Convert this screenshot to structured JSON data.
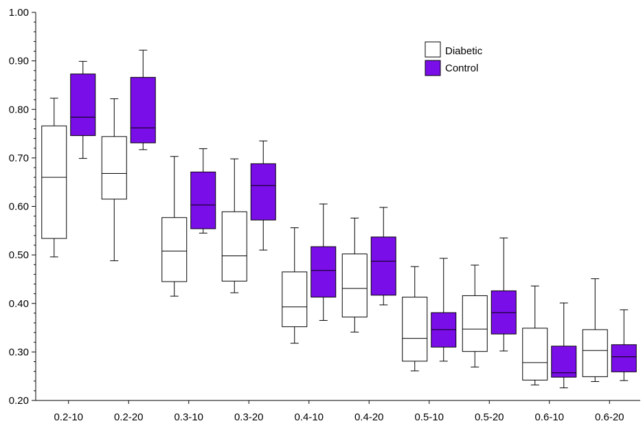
{
  "chart_data": {
    "type": "boxplot",
    "title": "",
    "xlabel": "",
    "ylabel": "",
    "ylim": [
      0.2,
      1.0
    ],
    "y_ticks": [
      "0.20",
      "0.30",
      "0.40",
      "0.50",
      "0.60",
      "0.70",
      "0.80",
      "0.90",
      "1.00"
    ],
    "grid": false,
    "legend_position": "top-right",
    "categories": [
      "0.2-10",
      "0.2-20",
      "0.3-10",
      "0.3-20",
      "0.4-10",
      "0.4-20",
      "0.5-10",
      "0.5-20",
      "0.6-10",
      "0.6-20"
    ],
    "series": [
      {
        "name": "Diabetic",
        "color": "#ffffff",
        "boxes": [
          {
            "whisker_low": 0.496,
            "q1": 0.534,
            "median": 0.66,
            "q3": 0.766,
            "whisker_high": 0.823
          },
          {
            "whisker_low": 0.488,
            "q1": 0.615,
            "median": 0.668,
            "q3": 0.744,
            "whisker_high": 0.822
          },
          {
            "whisker_low": 0.415,
            "q1": 0.445,
            "median": 0.508,
            "q3": 0.577,
            "whisker_high": 0.703
          },
          {
            "whisker_low": 0.422,
            "q1": 0.446,
            "median": 0.498,
            "q3": 0.589,
            "whisker_high": 0.698
          },
          {
            "whisker_low": 0.318,
            "q1": 0.352,
            "median": 0.393,
            "q3": 0.465,
            "whisker_high": 0.556
          },
          {
            "whisker_low": 0.341,
            "q1": 0.372,
            "median": 0.431,
            "q3": 0.502,
            "whisker_high": 0.576
          },
          {
            "whisker_low": 0.261,
            "q1": 0.281,
            "median": 0.328,
            "q3": 0.413,
            "whisker_high": 0.476
          },
          {
            "whisker_low": 0.269,
            "q1": 0.301,
            "median": 0.347,
            "q3": 0.416,
            "whisker_high": 0.479
          },
          {
            "whisker_low": 0.232,
            "q1": 0.242,
            "median": 0.278,
            "q3": 0.349,
            "whisker_high": 0.436
          },
          {
            "whisker_low": 0.239,
            "q1": 0.249,
            "median": 0.303,
            "q3": 0.346,
            "whisker_high": 0.451
          }
        ]
      },
      {
        "name": "Control",
        "color": "#7a0ee8",
        "boxes": [
          {
            "whisker_low": 0.699,
            "q1": 0.746,
            "median": 0.784,
            "q3": 0.873,
            "whisker_high": 0.899
          },
          {
            "whisker_low": 0.717,
            "q1": 0.731,
            "median": 0.762,
            "q3": 0.866,
            "whisker_high": 0.922
          },
          {
            "whisker_low": 0.545,
            "q1": 0.554,
            "median": 0.603,
            "q3": 0.671,
            "whisker_high": 0.719
          },
          {
            "whisker_low": 0.51,
            "q1": 0.572,
            "median": 0.643,
            "q3": 0.688,
            "whisker_high": 0.735
          },
          {
            "whisker_low": 0.365,
            "q1": 0.413,
            "median": 0.468,
            "q3": 0.517,
            "whisker_high": 0.605
          },
          {
            "whisker_low": 0.397,
            "q1": 0.417,
            "median": 0.487,
            "q3": 0.537,
            "whisker_high": 0.598
          },
          {
            "whisker_low": 0.281,
            "q1": 0.31,
            "median": 0.346,
            "q3": 0.381,
            "whisker_high": 0.493
          },
          {
            "whisker_low": 0.302,
            "q1": 0.337,
            "median": 0.381,
            "q3": 0.426,
            "whisker_high": 0.535
          },
          {
            "whisker_low": 0.226,
            "q1": 0.248,
            "median": 0.257,
            "q3": 0.312,
            "whisker_high": 0.401
          },
          {
            "whisker_low": 0.241,
            "q1": 0.259,
            "median": 0.29,
            "q3": 0.315,
            "whisker_high": 0.387
          }
        ]
      }
    ]
  }
}
